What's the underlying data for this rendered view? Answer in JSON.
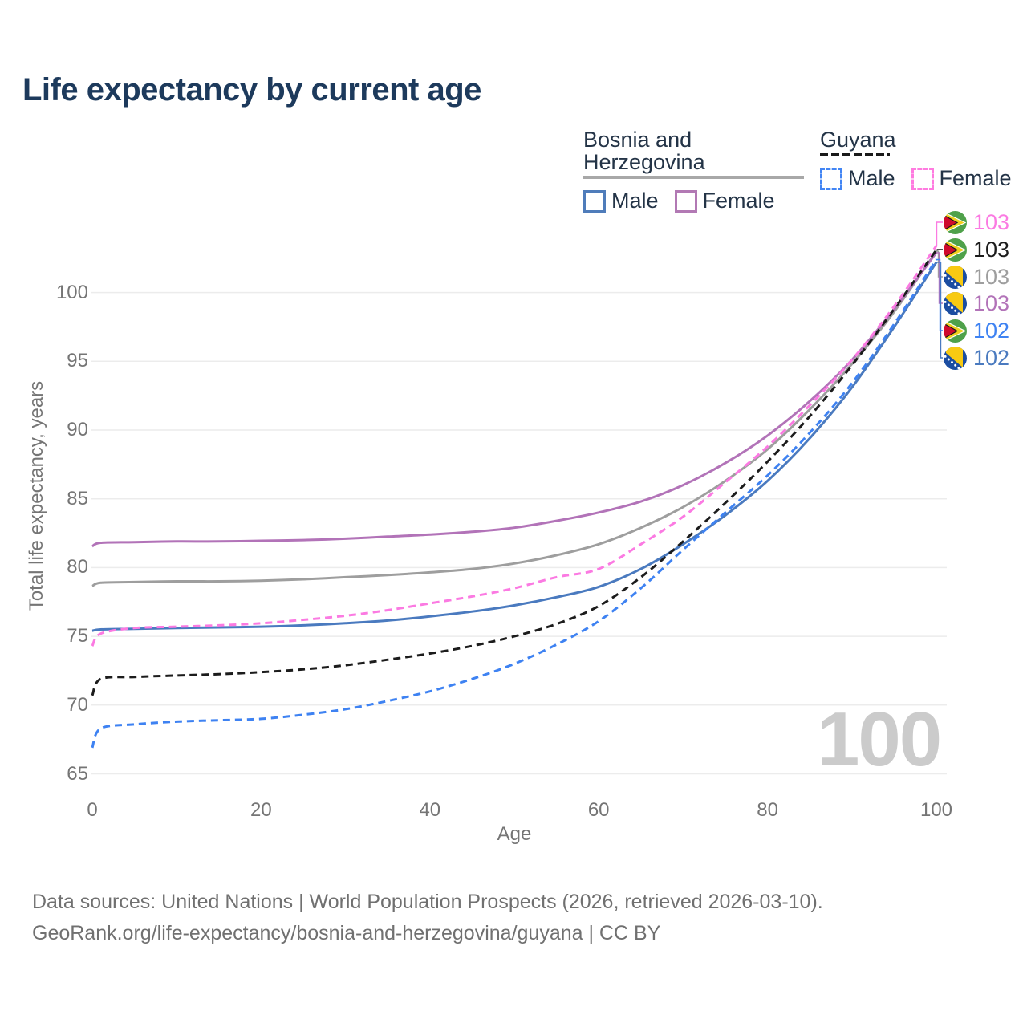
{
  "title": "Life expectancy by current age",
  "watermark": "100",
  "legend": {
    "groups": [
      {
        "label": "Bosnia and Herzegovina",
        "line_style": "solid",
        "line_color": "#a8a8a8",
        "items": [
          {
            "label": "Male",
            "color": "#4f7cba",
            "dash": false
          },
          {
            "label": "Female",
            "color": "#b279b4",
            "dash": false
          }
        ]
      },
      {
        "label": "Guyana",
        "line_style": "dashed",
        "line_color": "#1a1a1a",
        "items": [
          {
            "label": "Male",
            "color": "#4285f4",
            "dash": true
          },
          {
            "label": "Female",
            "color": "#ff7be0",
            "dash": true
          }
        ]
      }
    ]
  },
  "chart_data": {
    "type": "line",
    "title": "Life expectancy by current age",
    "xlabel": "Age",
    "ylabel": "Total life expectancy, years",
    "xlim": [
      0,
      100
    ],
    "ylim": [
      63,
      104
    ],
    "x_ticks": [
      0,
      20,
      40,
      60,
      80,
      100
    ],
    "y_ticks": [
      65,
      70,
      75,
      80,
      85,
      90,
      95,
      100
    ],
    "grid": "horizontal-only",
    "legend_position": "top-right",
    "x": [
      0,
      1,
      5,
      10,
      15,
      20,
      25,
      30,
      35,
      40,
      45,
      50,
      55,
      60,
      65,
      70,
      75,
      80,
      85,
      90,
      95,
      100
    ],
    "series": [
      {
        "name": "Bosnia and Herzegovina Total",
        "color": "#9e9e9e",
        "dash": false,
        "flag": "bosnia-flag",
        "end_label": "103",
        "label_row": 2,
        "values": [
          78.65,
          78.9,
          78.95,
          79.0,
          79.0,
          79.05,
          79.15,
          79.3,
          79.45,
          79.65,
          79.9,
          80.3,
          80.9,
          81.7,
          82.9,
          84.4,
          86.3,
          88.6,
          91.5,
          94.8,
          98.6,
          103.0
        ]
      },
      {
        "name": "Bosnia and Herzegovina Female",
        "color": "#b273b8",
        "dash": false,
        "flag": "bosnia-flag",
        "end_label": "103",
        "label_row": 3,
        "values": [
          81.55,
          81.8,
          81.85,
          81.9,
          81.9,
          81.95,
          82.0,
          82.1,
          82.25,
          82.4,
          82.6,
          82.9,
          83.4,
          84.0,
          84.8,
          86.0,
          87.6,
          89.6,
          92.1,
          95.1,
          98.8,
          102.9
        ]
      },
      {
        "name": "Bosnia and Herzegovina Male",
        "color": "#4a7abf",
        "dash": false,
        "flag": "bosnia-flag",
        "end_label": "102",
        "label_row": 5,
        "values": [
          75.4,
          75.5,
          75.55,
          75.6,
          75.65,
          75.7,
          75.8,
          75.95,
          76.15,
          76.45,
          76.8,
          77.25,
          77.85,
          78.6,
          79.9,
          81.7,
          83.8,
          86.3,
          89.4,
          93.1,
          97.5,
          102.2
        ]
      },
      {
        "name": "Guyana Total",
        "color": "#1c1c1c",
        "dash": true,
        "flag": "guyana-flag",
        "end_label": "103",
        "label_row": 1,
        "values": [
          70.7,
          71.9,
          72.05,
          72.15,
          72.25,
          72.4,
          72.6,
          72.9,
          73.3,
          73.75,
          74.3,
          75.0,
          75.9,
          77.2,
          79.3,
          81.9,
          84.7,
          87.7,
          91.0,
          94.7,
          98.8,
          103.1
        ]
      },
      {
        "name": "Guyana Female",
        "color": "#fb7ae2",
        "dash": true,
        "flag": "guyana-flag",
        "end_label": "103",
        "label_row": 0,
        "values": [
          74.3,
          75.2,
          75.6,
          75.7,
          75.8,
          75.95,
          76.2,
          76.5,
          76.9,
          77.4,
          77.9,
          78.5,
          79.3,
          79.9,
          81.7,
          83.7,
          86.2,
          88.8,
          91.8,
          95.1,
          99.0,
          103.4
        ]
      },
      {
        "name": "Guyana Male",
        "color": "#3e82f2",
        "dash": true,
        "flag": "guyana-flag",
        "end_label": "102",
        "label_row": 4,
        "values": [
          66.9,
          68.3,
          68.6,
          68.8,
          68.9,
          69.0,
          69.3,
          69.7,
          70.3,
          71.0,
          71.9,
          73.0,
          74.4,
          76.1,
          78.5,
          81.3,
          84.0,
          86.7,
          89.8,
          93.4,
          97.7,
          102.4
        ]
      }
    ]
  },
  "footer": {
    "line1": "Data sources: United Nations | World Population Prospects (2026, retrieved 2026-03-10).",
    "line2": "GeoRank.org/life-expectancy/bosnia-and-herzegovina/guyana | CC BY"
  }
}
